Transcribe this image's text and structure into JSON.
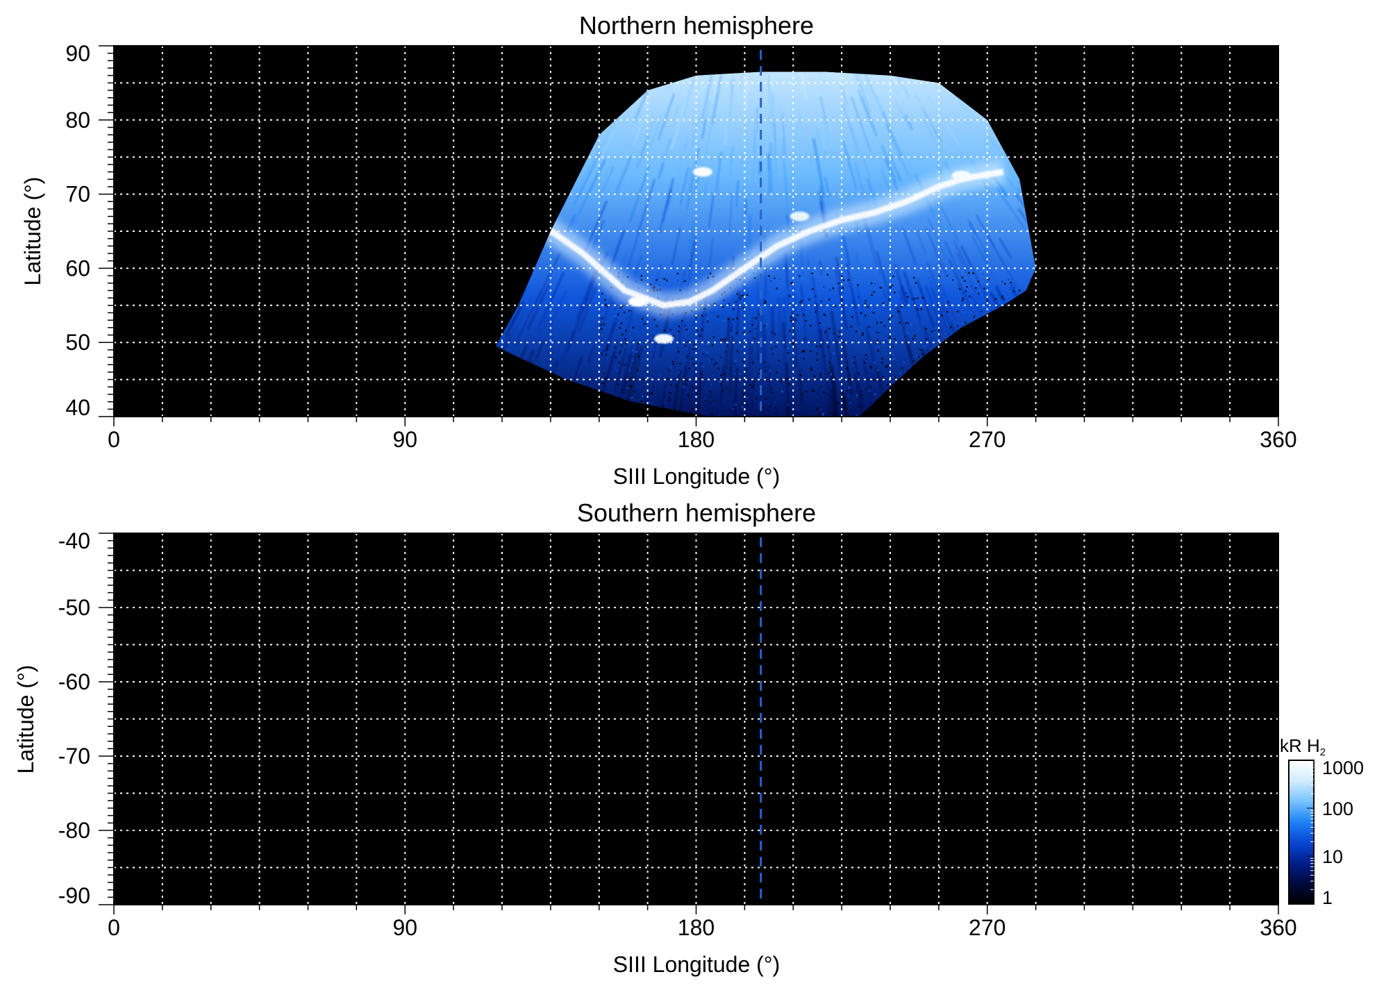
{
  "colors": {
    "background": "#000000",
    "grid": "#ffffff",
    "marker_line": "#2a63c9",
    "colorscale": [
      "#000000",
      "#000a3c",
      "#001e8c",
      "#0a46d2",
      "#1e82f5",
      "#78c3ff",
      "#d2ecff",
      "#ffffff"
    ]
  },
  "chart_data": [
    {
      "type": "heatmap",
      "title": "Northern hemisphere",
      "xlabel": "SIII Longitude (°)",
      "ylabel": "Latitude (°)",
      "xlim": [
        0,
        360
      ],
      "ylim": [
        40,
        90
      ],
      "x_ticks": [
        0,
        90,
        180,
        270,
        360
      ],
      "x_tick_labels": [
        "0",
        "90",
        "180",
        "270",
        "360"
      ],
      "y_ticks": [
        40,
        50,
        60,
        70,
        80,
        90
      ],
      "y_tick_labels": [
        "40",
        "50",
        "60",
        "70",
        "80",
        "90"
      ],
      "grid": true,
      "grid_x_spacing": 15,
      "grid_y_spacing": 5,
      "marker_longitude": 200,
      "observed_region": {
        "longitude": [
          118,
          125,
          135,
          150,
          165,
          180,
          200,
          220,
          240,
          255,
          270,
          280,
          285,
          282,
          275,
          262,
          250,
          240,
          233,
          229,
          190,
          160,
          140,
          125,
          118
        ],
        "latitude": [
          49.5,
          55,
          65,
          78,
          84,
          86,
          86.5,
          86.5,
          86,
          85,
          80,
          72,
          60,
          57,
          55,
          52,
          48,
          44,
          41,
          39.5,
          39.5,
          42,
          45,
          48,
          49.5
        ]
      },
      "main_oval": {
        "longitude": [
          120,
          132,
          145,
          158,
          170,
          178,
          185,
          195,
          205,
          215,
          225,
          235,
          245,
          255,
          262,
          268,
          275
        ],
        "latitude": [
          69,
          66,
          62,
          57,
          55,
          55.5,
          57,
          60,
          63,
          65,
          66.5,
          67.5,
          69,
          71,
          72,
          72.5,
          73
        ]
      },
      "bright_spots": [
        {
          "longitude": 162,
          "latitude": 55.5,
          "level": 1000
        },
        {
          "longitude": 170,
          "latitude": 50.5,
          "level": 700
        },
        {
          "longitude": 182,
          "latitude": 73,
          "level": 900
        },
        {
          "longitude": 212,
          "latitude": 67,
          "level": 600
        },
        {
          "longitude": 262,
          "latitude": 72.5,
          "level": 800
        }
      ]
    },
    {
      "type": "heatmap",
      "title": "Southern hemisphere",
      "xlabel": "SIII Longitude (°)",
      "ylabel": "Latitude (°)",
      "xlim": [
        0,
        360
      ],
      "ylim": [
        -90,
        -40
      ],
      "x_ticks": [
        0,
        90,
        180,
        270,
        360
      ],
      "x_tick_labels": [
        "0",
        "90",
        "180",
        "270",
        "360"
      ],
      "y_ticks": [
        -40,
        -50,
        -60,
        -70,
        -80,
        -90
      ],
      "y_tick_labels": [
        "-40",
        "-50",
        "-60",
        "-70",
        "-80",
        "-90"
      ],
      "grid": true,
      "grid_x_spacing": 15,
      "grid_y_spacing": 5,
      "marker_longitude": 200,
      "observed_region": null
    }
  ],
  "colorbar": {
    "label_main": "kR H",
    "label_subscript": "2",
    "scale": "log",
    "range": [
      1,
      1000
    ],
    "ticks": [
      1,
      10,
      100,
      1000
    ],
    "tick_labels": [
      "1",
      "10",
      "100",
      "1000"
    ]
  }
}
